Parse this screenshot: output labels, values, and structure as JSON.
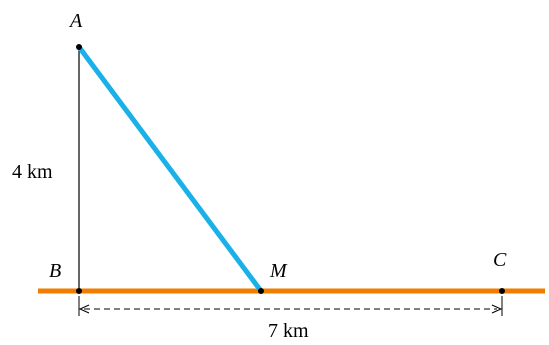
{
  "diagram": {
    "points": {
      "A": "A",
      "B": "B",
      "M": "M",
      "C": "C"
    },
    "labels": {
      "vertical_distance": "4 km",
      "horizontal_distance": "7 km"
    },
    "colors": {
      "road": "#f07d00",
      "path": "#1ab0e8",
      "line": "#000000"
    }
  }
}
